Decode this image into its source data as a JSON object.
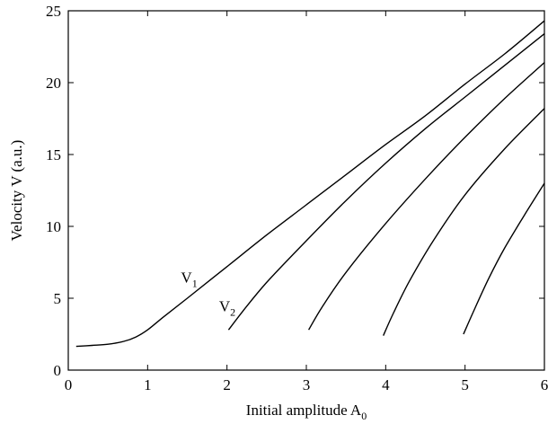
{
  "chart_data": {
    "type": "line",
    "title": "",
    "xlabel": "Initial amplitude A",
    "xlabel_sub": "0",
    "ylabel": "Velocity V (a.u.)",
    "xlim": [
      0,
      6
    ],
    "ylim": [
      0,
      25
    ],
    "xticks": [
      0,
      1,
      2,
      3,
      4,
      5,
      6
    ],
    "yticks": [
      0,
      5,
      10,
      15,
      20,
      25
    ],
    "grid": false,
    "legend": "none",
    "line_color": "#000000",
    "series": [
      {
        "label": "V",
        "label_sub": "1",
        "label_at": [
          1.42,
          6.1
        ],
        "points": [
          [
            0.1,
            1.65
          ],
          [
            0.3,
            1.72
          ],
          [
            0.5,
            1.8
          ],
          [
            0.7,
            2.0
          ],
          [
            0.85,
            2.3
          ],
          [
            1.0,
            2.8
          ],
          [
            1.2,
            3.7
          ],
          [
            1.5,
            5.0
          ],
          [
            2.0,
            7.2
          ],
          [
            2.5,
            9.4
          ],
          [
            3.0,
            11.5
          ],
          [
            3.5,
            13.6
          ],
          [
            4.0,
            15.7
          ],
          [
            4.5,
            17.7
          ],
          [
            5.0,
            19.9
          ],
          [
            5.5,
            22.0
          ],
          [
            6.0,
            24.3
          ]
        ]
      },
      {
        "label": "V",
        "label_sub": "2",
        "label_at": [
          1.9,
          4.1
        ],
        "points": [
          [
            2.02,
            2.8
          ],
          [
            2.2,
            4.1
          ],
          [
            2.5,
            6.1
          ],
          [
            3.0,
            9.0
          ],
          [
            3.5,
            11.8
          ],
          [
            4.0,
            14.4
          ],
          [
            4.5,
            16.8
          ],
          [
            5.0,
            19.0
          ],
          [
            5.5,
            21.2
          ],
          [
            6.0,
            23.4
          ]
        ]
      },
      {
        "points": [
          [
            3.03,
            2.8
          ],
          [
            3.2,
            4.4
          ],
          [
            3.5,
            6.8
          ],
          [
            4.0,
            10.2
          ],
          [
            4.5,
            13.3
          ],
          [
            5.0,
            16.2
          ],
          [
            5.5,
            18.9
          ],
          [
            6.0,
            21.4
          ]
        ]
      },
      {
        "points": [
          [
            3.97,
            2.4
          ],
          [
            4.1,
            4.0
          ],
          [
            4.3,
            6.2
          ],
          [
            4.6,
            9.0
          ],
          [
            5.0,
            12.2
          ],
          [
            5.5,
            15.4
          ],
          [
            6.0,
            18.2
          ]
        ]
      },
      {
        "points": [
          [
            4.98,
            2.5
          ],
          [
            5.1,
            4.0
          ],
          [
            5.3,
            6.4
          ],
          [
            5.5,
            8.5
          ],
          [
            5.75,
            10.8
          ],
          [
            6.0,
            13.0
          ]
        ]
      }
    ]
  }
}
